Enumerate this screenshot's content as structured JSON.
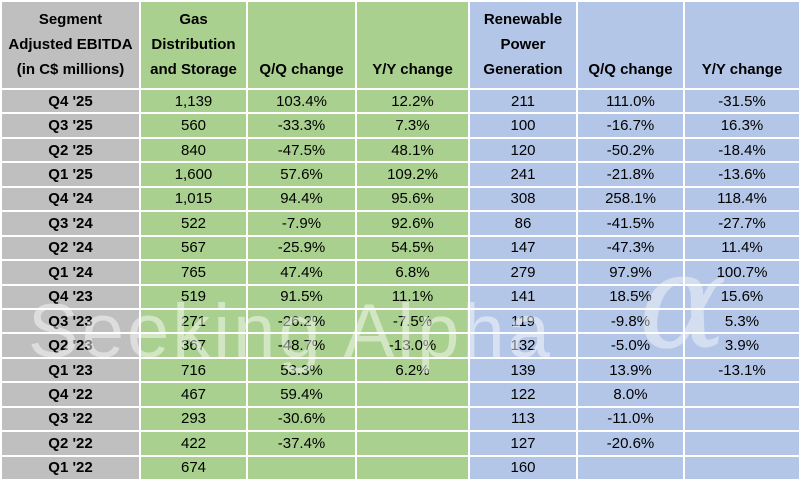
{
  "colors": {
    "label_fill": "#BFBFBF",
    "gas_fill": "#A9D08E",
    "renewable_fill": "#B4C6E7",
    "gridline": "#FFFFFF",
    "text": "#000000"
  },
  "watermark": {
    "text": "Seeking Alpha",
    "alpha_symbol": "α"
  },
  "table": {
    "corner_header": "Segment\nAdjusted EBITDA\n(in C$ millions)",
    "gas_header": "Gas\nDistribution\nand Storage",
    "gas_qq_header": "Q/Q change",
    "gas_yy_header": "Y/Y change",
    "renewable_header": "Renewable\nPower\nGeneration",
    "renewable_qq_header": "Q/Q change",
    "renewable_yy_header": "Y/Y change"
  },
  "chart_data": {
    "type": "table",
    "title": "Segment Adjusted EBITDA (in C$ millions)",
    "columns": [
      "Segment Adjusted EBITDA (in C$ millions)",
      "Gas Distribution and Storage",
      "Q/Q change",
      "Y/Y change",
      "Renewable Power Generation",
      "Q/Q change",
      "Y/Y change"
    ],
    "rows": [
      [
        "Q4 '25",
        "1,139",
        "103.4%",
        "12.2%",
        "211",
        "111.0%",
        "-31.5%"
      ],
      [
        "Q3 '25",
        "560",
        "-33.3%",
        "7.3%",
        "100",
        "-16.7%",
        "16.3%"
      ],
      [
        "Q2 '25",
        "840",
        "-47.5%",
        "48.1%",
        "120",
        "-50.2%",
        "-18.4%"
      ],
      [
        "Q1 '25",
        "1,600",
        "57.6%",
        "109.2%",
        "241",
        "-21.8%",
        "-13.6%"
      ],
      [
        "Q4 '24",
        "1,015",
        "94.4%",
        "95.6%",
        "308",
        "258.1%",
        "118.4%"
      ],
      [
        "Q3 '24",
        "522",
        "-7.9%",
        "92.6%",
        "86",
        "-41.5%",
        "-27.7%"
      ],
      [
        "Q2 '24",
        "567",
        "-25.9%",
        "54.5%",
        "147",
        "-47.3%",
        "11.4%"
      ],
      [
        "Q1 '24",
        "765",
        "47.4%",
        "6.8%",
        "279",
        "97.9%",
        "100.7%"
      ],
      [
        "Q4 '23",
        "519",
        "91.5%",
        "11.1%",
        "141",
        "18.5%",
        "15.6%"
      ],
      [
        "Q3 '23",
        "271",
        "-26.2%",
        "-7.5%",
        "119",
        "-9.8%",
        "5.3%"
      ],
      [
        "Q2 '23",
        "367",
        "-48.7%",
        "-13.0%",
        "132",
        "-5.0%",
        "3.9%"
      ],
      [
        "Q1 '23",
        "716",
        "53.3%",
        "6.2%",
        "139",
        "13.9%",
        "-13.1%"
      ],
      [
        "Q4 '22",
        "467",
        "59.4%",
        "",
        "122",
        "8.0%",
        ""
      ],
      [
        "Q3 '22",
        "293",
        "-30.6%",
        "",
        "113",
        "-11.0%",
        ""
      ],
      [
        "Q2 '22",
        "422",
        "-37.4%",
        "",
        "127",
        "-20.6%",
        ""
      ],
      [
        "Q1 '22",
        "674",
        "",
        "",
        "160",
        "",
        ""
      ]
    ]
  }
}
